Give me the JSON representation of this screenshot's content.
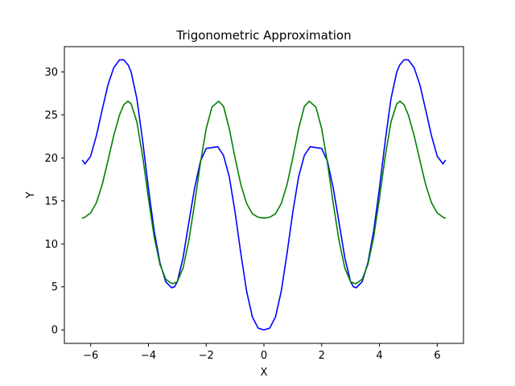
{
  "chart_data": {
    "type": "line",
    "title": "Trigonometric Approximation",
    "xlabel": "X",
    "ylabel": "Y",
    "xlim": [
      -6.91,
      6.91
    ],
    "ylim": [
      -1.57,
      32.94
    ],
    "xticks": [
      -6,
      -4,
      -2,
      0,
      2,
      4,
      6
    ],
    "yticks": [
      0,
      5,
      10,
      15,
      20,
      25,
      30
    ],
    "grid": false,
    "series": [
      {
        "color": "#0000ff",
        "x": [
          -6.28,
          -6.2,
          -6.0,
          -5.8,
          -5.6,
          -5.4,
          -5.2,
          -5.0,
          -4.85,
          -4.7,
          -4.6,
          -4.4,
          -4.2,
          -4.0,
          -3.8,
          -3.6,
          -3.4,
          -3.2,
          -3.1,
          -3.0,
          -2.8,
          -2.6,
          -2.4,
          -2.2,
          -2.0,
          -1.8,
          -1.6,
          -1.4,
          -1.2,
          -1.0,
          -0.8,
          -0.6,
          -0.4,
          -0.2,
          0.0,
          0.2,
          0.4,
          0.6,
          0.8,
          1.0,
          1.2,
          1.4,
          1.6,
          1.8,
          2.0,
          2.2,
          2.4,
          2.6,
          2.8,
          3.0,
          3.1,
          3.2,
          3.4,
          3.6,
          3.8,
          4.0,
          4.2,
          4.4,
          4.6,
          4.7,
          4.85,
          5.0,
          5.2,
          5.4,
          5.6,
          5.8,
          6.0,
          6.2,
          6.28
        ],
        "y": [
          19.7,
          19.3,
          20.2,
          22.6,
          25.6,
          28.5,
          30.5,
          31.4,
          31.4,
          30.8,
          30.0,
          26.9,
          22.0,
          16.5,
          11.5,
          7.8,
          5.6,
          4.9,
          5.0,
          5.6,
          8.4,
          12.5,
          16.5,
          19.6,
          21.1,
          21.2,
          21.3,
          20.3,
          17.8,
          13.7,
          8.9,
          4.5,
          1.5,
          0.2,
          0.0,
          0.2,
          1.5,
          4.5,
          8.9,
          13.7,
          17.8,
          20.3,
          21.3,
          21.2,
          21.1,
          19.6,
          16.5,
          12.5,
          8.4,
          5.6,
          5.0,
          4.9,
          5.6,
          7.8,
          11.5,
          16.5,
          22.0,
          26.9,
          30.0,
          30.8,
          31.4,
          31.4,
          30.5,
          28.5,
          25.6,
          22.6,
          20.2,
          19.3,
          19.7
        ]
      },
      {
        "color": "#008000",
        "x": [
          -6.28,
          -6.2,
          -6.0,
          -5.8,
          -5.6,
          -5.4,
          -5.2,
          -5.0,
          -4.85,
          -4.71,
          -4.6,
          -4.4,
          -4.2,
          -4.0,
          -3.8,
          -3.6,
          -3.4,
          -3.2,
          -3.14,
          -3.0,
          -2.8,
          -2.6,
          -2.4,
          -2.2,
          -2.0,
          -1.8,
          -1.57,
          -1.4,
          -1.2,
          -1.0,
          -0.8,
          -0.6,
          -0.4,
          -0.2,
          0.0,
          0.2,
          0.4,
          0.6,
          0.8,
          1.0,
          1.2,
          1.4,
          1.57,
          1.8,
          2.0,
          2.2,
          2.4,
          2.6,
          2.8,
          3.0,
          3.14,
          3.2,
          3.4,
          3.6,
          3.8,
          4.0,
          4.2,
          4.4,
          4.6,
          4.71,
          4.85,
          5.0,
          5.2,
          5.4,
          5.6,
          5.8,
          6.0,
          6.2,
          6.28
        ],
        "y": [
          13.0,
          13.1,
          13.6,
          14.8,
          16.9,
          19.7,
          22.6,
          25.0,
          26.2,
          26.6,
          26.3,
          24.2,
          20.2,
          15.3,
          10.8,
          7.6,
          5.9,
          5.4,
          5.4,
          5.6,
          7.2,
          10.4,
          14.7,
          19.4,
          23.4,
          25.9,
          26.6,
          26.0,
          23.4,
          20.0,
          16.9,
          14.7,
          13.5,
          13.1,
          13.0,
          13.1,
          13.5,
          14.7,
          16.9,
          20.0,
          23.4,
          26.0,
          26.6,
          25.9,
          23.4,
          19.4,
          14.7,
          10.4,
          7.2,
          5.6,
          5.4,
          5.4,
          5.9,
          7.6,
          10.8,
          15.3,
          20.2,
          24.2,
          26.3,
          26.6,
          26.2,
          25.0,
          22.6,
          19.7,
          16.9,
          14.8,
          13.6,
          13.1,
          13.0
        ]
      }
    ]
  }
}
